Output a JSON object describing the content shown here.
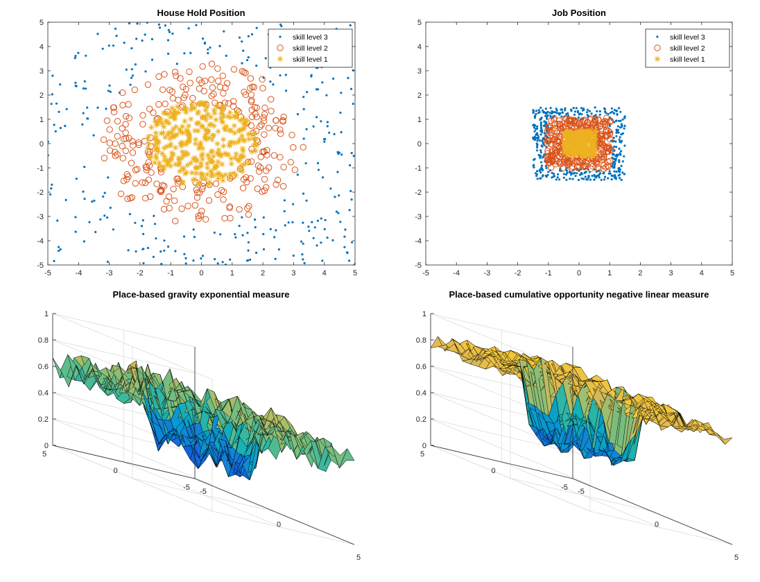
{
  "chart_data": [
    {
      "type": "scatter",
      "title": "House Hold Position",
      "xlim": [
        -5,
        5
      ],
      "ylim": [
        -5,
        5
      ],
      "xticks": [
        "-5",
        "-4",
        "-3",
        "-2",
        "-1",
        "0",
        "1",
        "2",
        "3",
        "4",
        "5"
      ],
      "yticks": [
        "5",
        "4",
        "3",
        "2",
        "1",
        "0",
        "-1",
        "-2",
        "-3",
        "-4",
        "-5"
      ],
      "grid": false,
      "legend": {
        "placement": "top-right",
        "entries": [
          "skill level 3",
          "skill level 2",
          "skill level 1"
        ]
      },
      "series": [
        {
          "name": "skill level 3",
          "marker": "dot",
          "color": "#0072BD",
          "distribution": "uniform in [-5,5]x[-5,5] excluding radius 3.3",
          "count": 300
        },
        {
          "name": "skill level 2",
          "marker": "circle",
          "color": "#D95319",
          "distribution": "annulus radius 1.6 to 3.3",
          "count": 260
        },
        {
          "name": "skill level 1",
          "marker": "asterisk",
          "color": "#EDB120",
          "distribution": "disc radius 0 to 1.7",
          "count": 330
        }
      ]
    },
    {
      "type": "scatter",
      "title": "Job Position",
      "xlim": [
        -5,
        5
      ],
      "ylim": [
        -5,
        5
      ],
      "xticks": [
        "-5",
        "-4",
        "-3",
        "-2",
        "-1",
        "0",
        "1",
        "2",
        "3",
        "4",
        "5"
      ],
      "yticks": [
        "5",
        "4",
        "3",
        "2",
        "1",
        "0",
        "-1",
        "-2",
        "-3",
        "-4",
        "-5"
      ],
      "grid": false,
      "legend": {
        "placement": "top-right",
        "entries": [
          "skill level 3",
          "skill level 2",
          "skill level 1"
        ]
      },
      "series": [
        {
          "name": "skill level 3",
          "marker": "dot",
          "color": "#0072BD",
          "distribution": "square [-1.5,1.5]^2 excluding [-1,1]^2",
          "count": 420
        },
        {
          "name": "skill level 2",
          "marker": "circle",
          "color": "#D95319",
          "distribution": "square [-1,1]^2 excluding [-0.5,0.5]^2",
          "count": 320
        },
        {
          "name": "skill level 1",
          "marker": "asterisk",
          "color": "#EDB120",
          "distribution": "square [-0.5,0.5]^2",
          "count": 260
        }
      ]
    },
    {
      "type": "surface",
      "title": "Place-based gravity exponential measure",
      "xlim": [
        -5,
        5
      ],
      "ylim": [
        -5,
        5
      ],
      "zlim": [
        0,
        1
      ],
      "zticks": [
        "0",
        "0.2",
        "0.4",
        "0.6",
        "0.8",
        "1"
      ],
      "xticks": [
        "-5",
        "0",
        "5"
      ],
      "yticks": [
        "-5",
        "0",
        "5"
      ],
      "grid": true,
      "colormap": "parula",
      "surface": {
        "outer_level": 0.6,
        "rim_level": 0.75,
        "inner_level": 0.3,
        "center_level": 0.42,
        "rim_radius": 3.2,
        "noise": 0.12
      }
    },
    {
      "type": "surface",
      "title": "Place-based cumulative opportunity negative linear measure",
      "xlim": [
        -5,
        5
      ],
      "ylim": [
        -5,
        5
      ],
      "zlim": [
        0,
        1
      ],
      "zticks": [
        "0",
        "0.2",
        "0.4",
        "0.6",
        "0.8",
        "1"
      ],
      "xticks": [
        "-5",
        "0",
        "5"
      ],
      "yticks": [
        "-5",
        "0",
        "5"
      ],
      "grid": true,
      "colormap": "parula",
      "surface": {
        "outer_level": 0.8,
        "rim_level": 0.85,
        "inner_level": 0.3,
        "center_level": 0.55,
        "rim_radius": 3.0,
        "noise": 0.07
      }
    }
  ],
  "colors": {
    "skill3": "#0072BD",
    "skill2": "#D95319",
    "skill1": "#EDB120",
    "axis": "#262626",
    "grid": "#dcdcdc"
  }
}
